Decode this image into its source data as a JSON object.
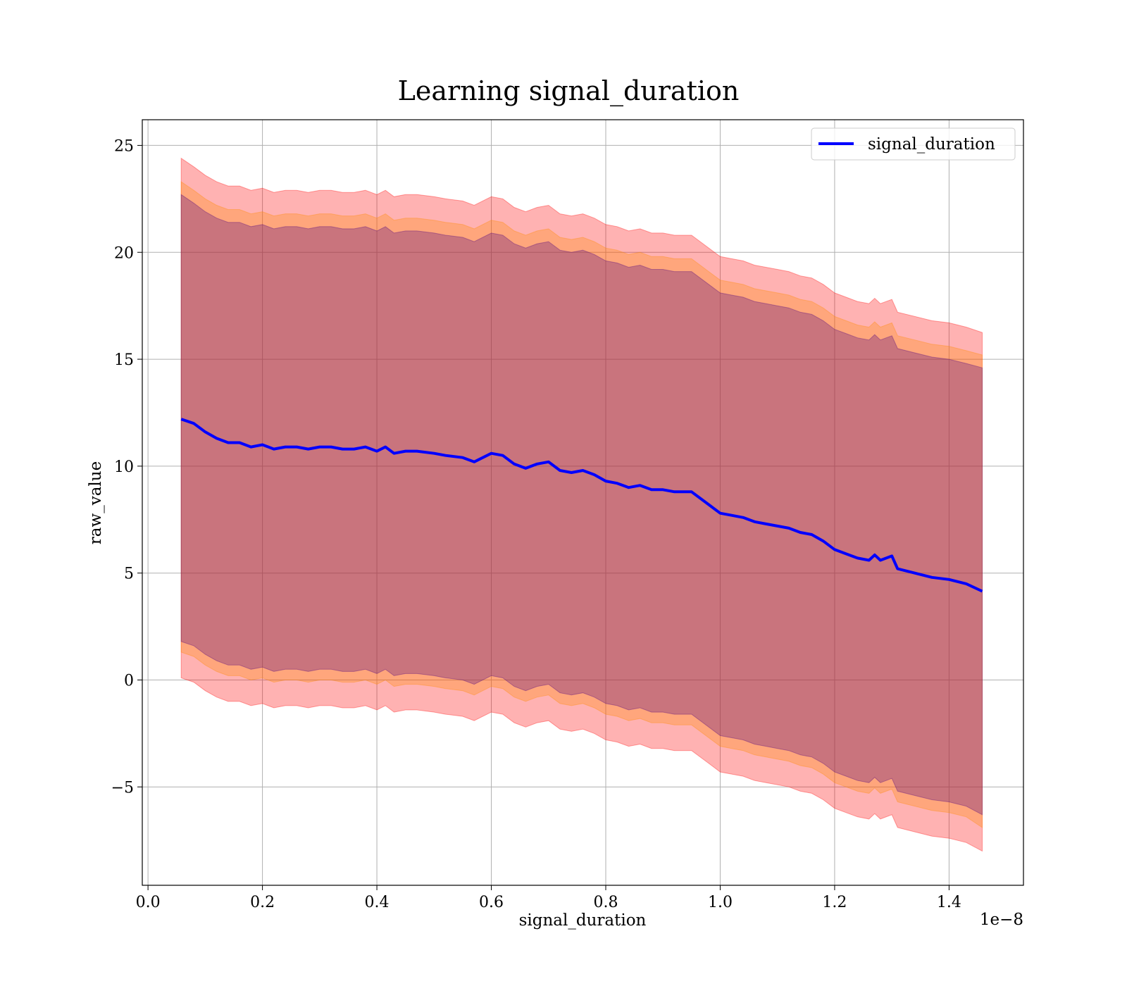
{
  "chart_data": {
    "type": "line",
    "title": "Learning signal_duration",
    "xlabel": "signal_duration",
    "ylabel": "raw_value",
    "x_offset_label": "1e−8",
    "xlim": [
      -0.01,
      1.53
    ],
    "ylim": [
      -9.6,
      26.2
    ],
    "x_ticks": [
      0.0,
      0.2,
      0.4,
      0.6,
      0.8,
      1.0,
      1.2,
      1.4
    ],
    "x_tick_labels": [
      "0.0",
      "0.2",
      "0.4",
      "0.6",
      "0.8",
      "1.0",
      "1.2",
      "1.4"
    ],
    "y_ticks": [
      -5,
      0,
      5,
      10,
      15,
      20,
      25
    ],
    "y_tick_labels": [
      "−5",
      "0",
      "5",
      "10",
      "15",
      "20",
      "25"
    ],
    "grid": true,
    "legend": {
      "position": "top-right",
      "entries": [
        "signal_duration"
      ]
    },
    "series": [
      {
        "name": "signal_duration",
        "color": "#0000ff",
        "x": [
          0.058,
          0.08,
          0.1,
          0.12,
          0.14,
          0.16,
          0.18,
          0.2,
          0.22,
          0.24,
          0.26,
          0.28,
          0.3,
          0.32,
          0.34,
          0.36,
          0.38,
          0.4,
          0.415,
          0.43,
          0.45,
          0.47,
          0.5,
          0.52,
          0.55,
          0.57,
          0.6,
          0.62,
          0.64,
          0.66,
          0.68,
          0.7,
          0.72,
          0.74,
          0.76,
          0.78,
          0.8,
          0.82,
          0.84,
          0.86,
          0.88,
          0.9,
          0.92,
          0.95,
          0.98,
          1.0,
          1.02,
          1.04,
          1.06,
          1.08,
          1.1,
          1.12,
          1.14,
          1.16,
          1.18,
          1.2,
          1.22,
          1.24,
          1.26,
          1.27,
          1.28,
          1.3,
          1.31,
          1.34,
          1.37,
          1.4,
          1.43,
          1.458
        ],
        "values": [
          12.2,
          12.0,
          11.6,
          11.3,
          11.1,
          11.1,
          10.9,
          11.0,
          10.8,
          10.9,
          10.9,
          10.8,
          10.9,
          10.9,
          10.8,
          10.8,
          10.9,
          10.7,
          10.9,
          10.6,
          10.7,
          10.7,
          10.6,
          10.5,
          10.4,
          10.2,
          10.6,
          10.5,
          10.1,
          9.9,
          10.1,
          10.2,
          9.8,
          9.7,
          9.8,
          9.6,
          9.3,
          9.2,
          9.0,
          9.1,
          8.9,
          8.9,
          8.8,
          8.8,
          8.2,
          7.8,
          7.7,
          7.6,
          7.4,
          7.3,
          7.2,
          7.1,
          6.9,
          6.8,
          6.5,
          6.1,
          5.9,
          5.7,
          5.6,
          5.85,
          5.6,
          5.8,
          5.2,
          5.0,
          4.8,
          4.7,
          4.5,
          4.15
        ]
      }
    ],
    "bands": [
      {
        "color": "#ff0000",
        "opacity": 0.3,
        "upper": [
          24.4,
          24.0,
          23.6,
          23.3,
          23.1,
          23.1,
          22.9,
          23.0,
          22.8,
          22.9,
          22.9,
          22.8,
          22.9,
          22.9,
          22.8,
          22.8,
          22.9,
          22.7,
          22.9,
          22.6,
          22.7,
          22.7,
          22.6,
          22.5,
          22.4,
          22.2,
          22.6,
          22.5,
          22.1,
          21.9,
          22.1,
          22.2,
          21.8,
          21.7,
          21.8,
          21.6,
          21.3,
          21.2,
          21.0,
          21.1,
          20.9,
          20.9,
          20.8,
          20.8,
          20.2,
          19.8,
          19.7,
          19.6,
          19.4,
          19.3,
          19.2,
          19.1,
          18.9,
          18.8,
          18.5,
          18.1,
          17.9,
          17.7,
          17.6,
          17.85,
          17.6,
          17.8,
          17.2,
          17.0,
          16.8,
          16.7,
          16.5,
          16.25
        ],
        "lower": [
          0.1,
          -0.1,
          -0.5,
          -0.8,
          -1.0,
          -1.0,
          -1.2,
          -1.1,
          -1.3,
          -1.2,
          -1.2,
          -1.3,
          -1.2,
          -1.2,
          -1.3,
          -1.3,
          -1.2,
          -1.4,
          -1.2,
          -1.5,
          -1.4,
          -1.4,
          -1.5,
          -1.6,
          -1.7,
          -1.9,
          -1.5,
          -1.6,
          -2.0,
          -2.2,
          -2.0,
          -1.9,
          -2.3,
          -2.4,
          -2.3,
          -2.5,
          -2.8,
          -2.9,
          -3.1,
          -3.0,
          -3.2,
          -3.2,
          -3.3,
          -3.3,
          -3.9,
          -4.3,
          -4.4,
          -4.5,
          -4.7,
          -4.8,
          -4.9,
          -5.0,
          -5.2,
          -5.3,
          -5.6,
          -6.0,
          -6.2,
          -6.4,
          -6.5,
          -6.25,
          -6.5,
          -6.3,
          -6.9,
          -7.1,
          -7.3,
          -7.4,
          -7.6,
          -8.0
        ]
      },
      {
        "color": "#ff8c00",
        "opacity": 0.3,
        "upper": [
          23.3,
          22.9,
          22.5,
          22.2,
          22.0,
          22.0,
          21.8,
          21.9,
          21.7,
          21.8,
          21.8,
          21.7,
          21.8,
          21.8,
          21.7,
          21.7,
          21.8,
          21.6,
          21.8,
          21.5,
          21.6,
          21.6,
          21.5,
          21.4,
          21.3,
          21.1,
          21.5,
          21.4,
          21.0,
          20.8,
          21.0,
          21.1,
          20.7,
          20.6,
          20.7,
          20.5,
          20.2,
          20.1,
          19.9,
          20.0,
          19.8,
          19.8,
          19.7,
          19.7,
          19.1,
          18.7,
          18.6,
          18.5,
          18.3,
          18.2,
          18.1,
          18.0,
          17.8,
          17.7,
          17.4,
          17.0,
          16.8,
          16.6,
          16.5,
          16.75,
          16.5,
          16.7,
          16.1,
          15.9,
          15.7,
          15.6,
          15.4,
          15.2
        ],
        "lower": [
          1.3,
          1.1,
          0.7,
          0.4,
          0.2,
          0.2,
          0.0,
          0.1,
          -0.1,
          0.0,
          0.0,
          -0.1,
          0.0,
          0.0,
          -0.1,
          -0.1,
          0.0,
          -0.2,
          0.0,
          -0.3,
          -0.2,
          -0.2,
          -0.3,
          -0.4,
          -0.5,
          -0.7,
          -0.3,
          -0.4,
          -0.8,
          -1.0,
          -0.8,
          -0.7,
          -1.1,
          -1.2,
          -1.1,
          -1.3,
          -1.6,
          -1.7,
          -1.9,
          -1.8,
          -2.0,
          -2.0,
          -2.1,
          -2.1,
          -2.7,
          -3.1,
          -3.2,
          -3.3,
          -3.5,
          -3.6,
          -3.7,
          -3.8,
          -4.0,
          -4.1,
          -4.4,
          -4.8,
          -5.0,
          -5.2,
          -5.3,
          -5.05,
          -5.3,
          -5.1,
          -5.7,
          -5.9,
          -6.1,
          -6.2,
          -6.4,
          -6.9
        ]
      },
      {
        "color": "#4b0082",
        "opacity": 0.3,
        "upper": [
          22.7,
          22.3,
          21.9,
          21.6,
          21.4,
          21.4,
          21.2,
          21.3,
          21.1,
          21.2,
          21.2,
          21.1,
          21.2,
          21.2,
          21.1,
          21.1,
          21.2,
          21.0,
          21.2,
          20.9,
          21.0,
          21.0,
          20.9,
          20.8,
          20.7,
          20.5,
          20.9,
          20.8,
          20.4,
          20.2,
          20.4,
          20.5,
          20.1,
          20.0,
          20.1,
          19.9,
          19.6,
          19.5,
          19.3,
          19.4,
          19.2,
          19.2,
          19.1,
          19.1,
          18.5,
          18.1,
          18.0,
          17.9,
          17.7,
          17.6,
          17.5,
          17.4,
          17.2,
          17.1,
          16.8,
          16.4,
          16.2,
          16.0,
          15.9,
          16.15,
          15.9,
          16.1,
          15.5,
          15.3,
          15.1,
          15.0,
          14.8,
          14.6
        ],
        "lower": [
          1.8,
          1.6,
          1.2,
          0.9,
          0.7,
          0.7,
          0.5,
          0.6,
          0.4,
          0.5,
          0.5,
          0.4,
          0.5,
          0.5,
          0.4,
          0.4,
          0.5,
          0.3,
          0.5,
          0.2,
          0.3,
          0.3,
          0.2,
          0.1,
          0.0,
          -0.2,
          0.2,
          0.1,
          -0.3,
          -0.5,
          -0.3,
          -0.2,
          -0.6,
          -0.7,
          -0.6,
          -0.8,
          -1.1,
          -1.2,
          -1.4,
          -1.3,
          -1.5,
          -1.5,
          -1.6,
          -1.6,
          -2.2,
          -2.6,
          -2.7,
          -2.8,
          -3.0,
          -3.1,
          -3.2,
          -3.3,
          -3.5,
          -3.6,
          -3.9,
          -4.3,
          -4.5,
          -4.7,
          -4.8,
          -4.55,
          -4.8,
          -4.6,
          -5.2,
          -5.4,
          -5.6,
          -5.7,
          -5.9,
          -6.3
        ]
      }
    ]
  }
}
